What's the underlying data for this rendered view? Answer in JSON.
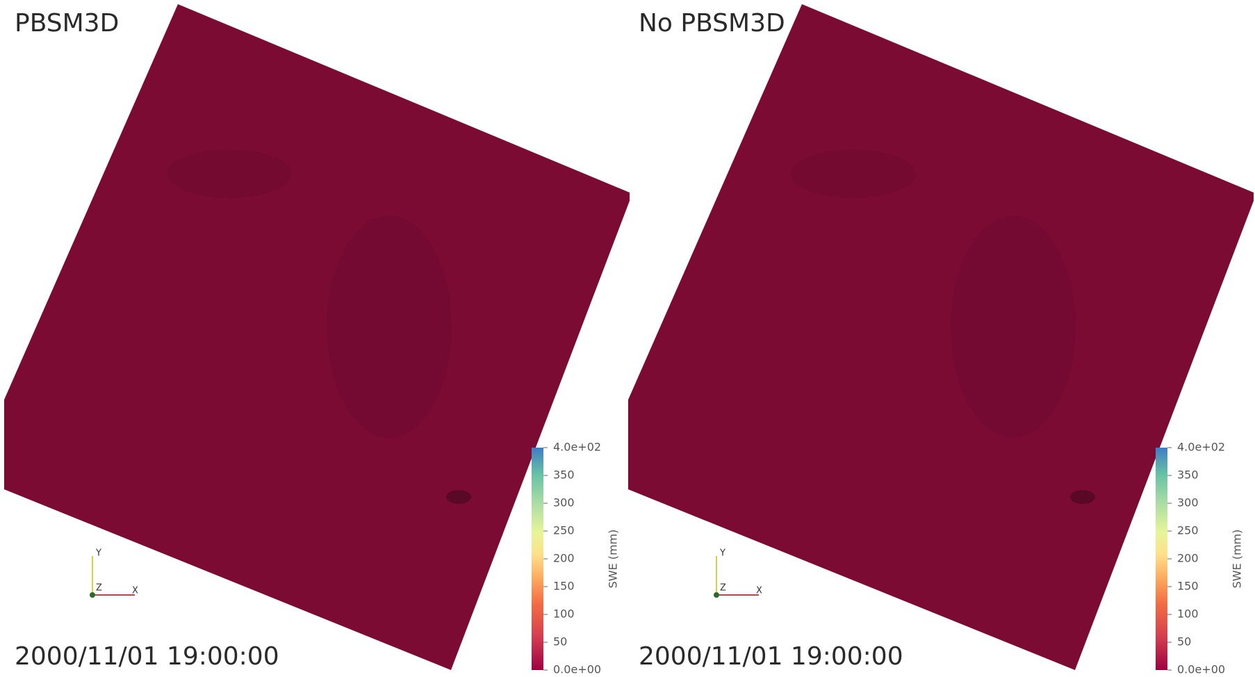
{
  "panels": [
    {
      "title": "PBSM3D",
      "timestamp": "2000/11/01 19:00:00",
      "colorbar": {
        "title": "SWE (mm)",
        "lim": [
          0,
          400
        ],
        "ticks": [
          {
            "value": 0,
            "label": "0.0e+00"
          },
          50,
          100,
          150,
          200,
          250,
          300,
          350,
          {
            "value": 400,
            "label": "4.0e+02"
          }
        ]
      },
      "triad": {
        "x": "X",
        "y": "Y",
        "z": "Z"
      }
    },
    {
      "title": "No PBSM3D",
      "timestamp": "2000/11/01 19:00:00",
      "colorbar": {
        "title": "SWE (mm)",
        "lim": [
          0,
          400
        ],
        "ticks": [
          {
            "value": 0,
            "label": "0.0e+00"
          },
          50,
          100,
          150,
          200,
          250,
          300,
          350,
          {
            "value": 400,
            "label": "4.0e+02"
          }
        ]
      },
      "triad": {
        "x": "X",
        "y": "Y",
        "z": "Z"
      }
    }
  ]
}
